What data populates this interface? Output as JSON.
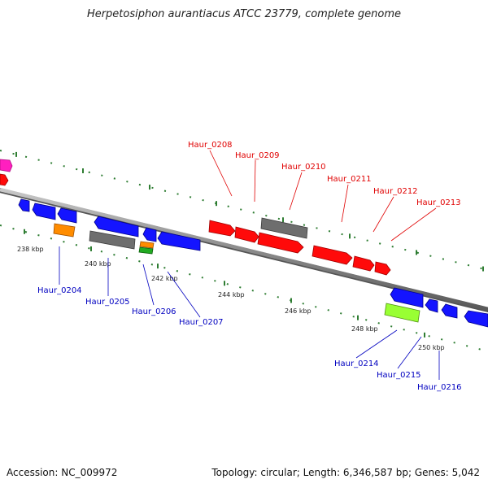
{
  "title": "Herpetosiphon aurantiacus ATCC 23779, complete genome",
  "footer": {
    "accession": "Accession: NC_009972",
    "summary": "Topology: circular; Length: 6,346,587 bp; Genes: 5,042"
  },
  "colors": {
    "backbone": "#8c8c8c",
    "ticks": "#2e7d32",
    "forward_label": "#e00000",
    "reverse_label": "#0000c0",
    "blue": "#1414ff",
    "red": "#ff0a0a",
    "gray": "#707070",
    "orange": "#ff8c00",
    "green": "#22aa22",
    "lime": "#99ff33",
    "magenta": "#ff1fbf"
  },
  "scale": {
    "unit": "kbp",
    "labels": [
      "238 kbp",
      "240 kbp",
      "242 kbp",
      "244 kbp",
      "246 kbp",
      "248 kbp",
      "250 kbp"
    ]
  },
  "genes": {
    "forward_labels": [
      "Haur_0208",
      "Haur_0209",
      "Haur_0210",
      "Haur_0211",
      "Haur_0212",
      "Haur_0213"
    ],
    "reverse_labels": [
      "Haur_0204",
      "Haur_0205",
      "Haur_0206",
      "Haur_0207",
      "Haur_0214",
      "Haur_0215",
      "Haur_0216"
    ]
  }
}
